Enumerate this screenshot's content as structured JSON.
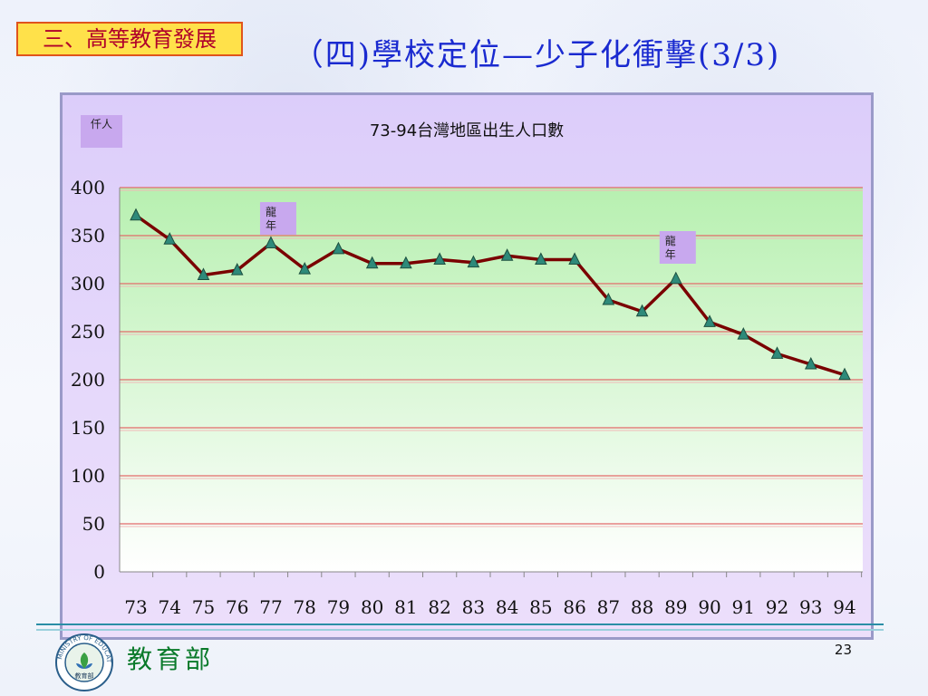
{
  "section_label": "三、高等教育發展",
  "slide_title": "（四)學校定位—少子化衝擊(3/3)",
  "org_name": "教育部",
  "page_number": "23",
  "logo": {
    "icon": "ministry-of-education-seal",
    "ring_text": "MINISTRY OF EDUCATION",
    "inner_text": "教育部"
  },
  "colors": {
    "line": "#7a0000",
    "marker": "#2e8a7a",
    "plot_bg_top": "#b7f0b0",
    "plot_bg_bottom": "#ffffff",
    "gridline": "#e46a6a"
  },
  "chart_data": {
    "type": "line",
    "title": "73-94台灣地區出生人口數",
    "ylabel": "仟人",
    "xlabel": "",
    "ylim": [
      0,
      400
    ],
    "yticks": [
      0,
      50,
      100,
      150,
      200,
      250,
      300,
      350,
      400
    ],
    "grid": true,
    "categories": [
      "73",
      "74",
      "75",
      "76",
      "77",
      "78",
      "79",
      "80",
      "81",
      "82",
      "83",
      "84",
      "85",
      "86",
      "87",
      "88",
      "89",
      "90",
      "91",
      "92",
      "93",
      "94"
    ],
    "series": [
      {
        "values": [
          371,
          346,
          309,
          314,
          342,
          315,
          336,
          321,
          321,
          325,
          322,
          329,
          325,
          325,
          283,
          271,
          305,
          260,
          247,
          227,
          216,
          205
        ]
      }
    ],
    "annotations": [
      {
        "text": "龍年",
        "category": "77"
      },
      {
        "text": "龍年",
        "category": "89"
      }
    ]
  }
}
